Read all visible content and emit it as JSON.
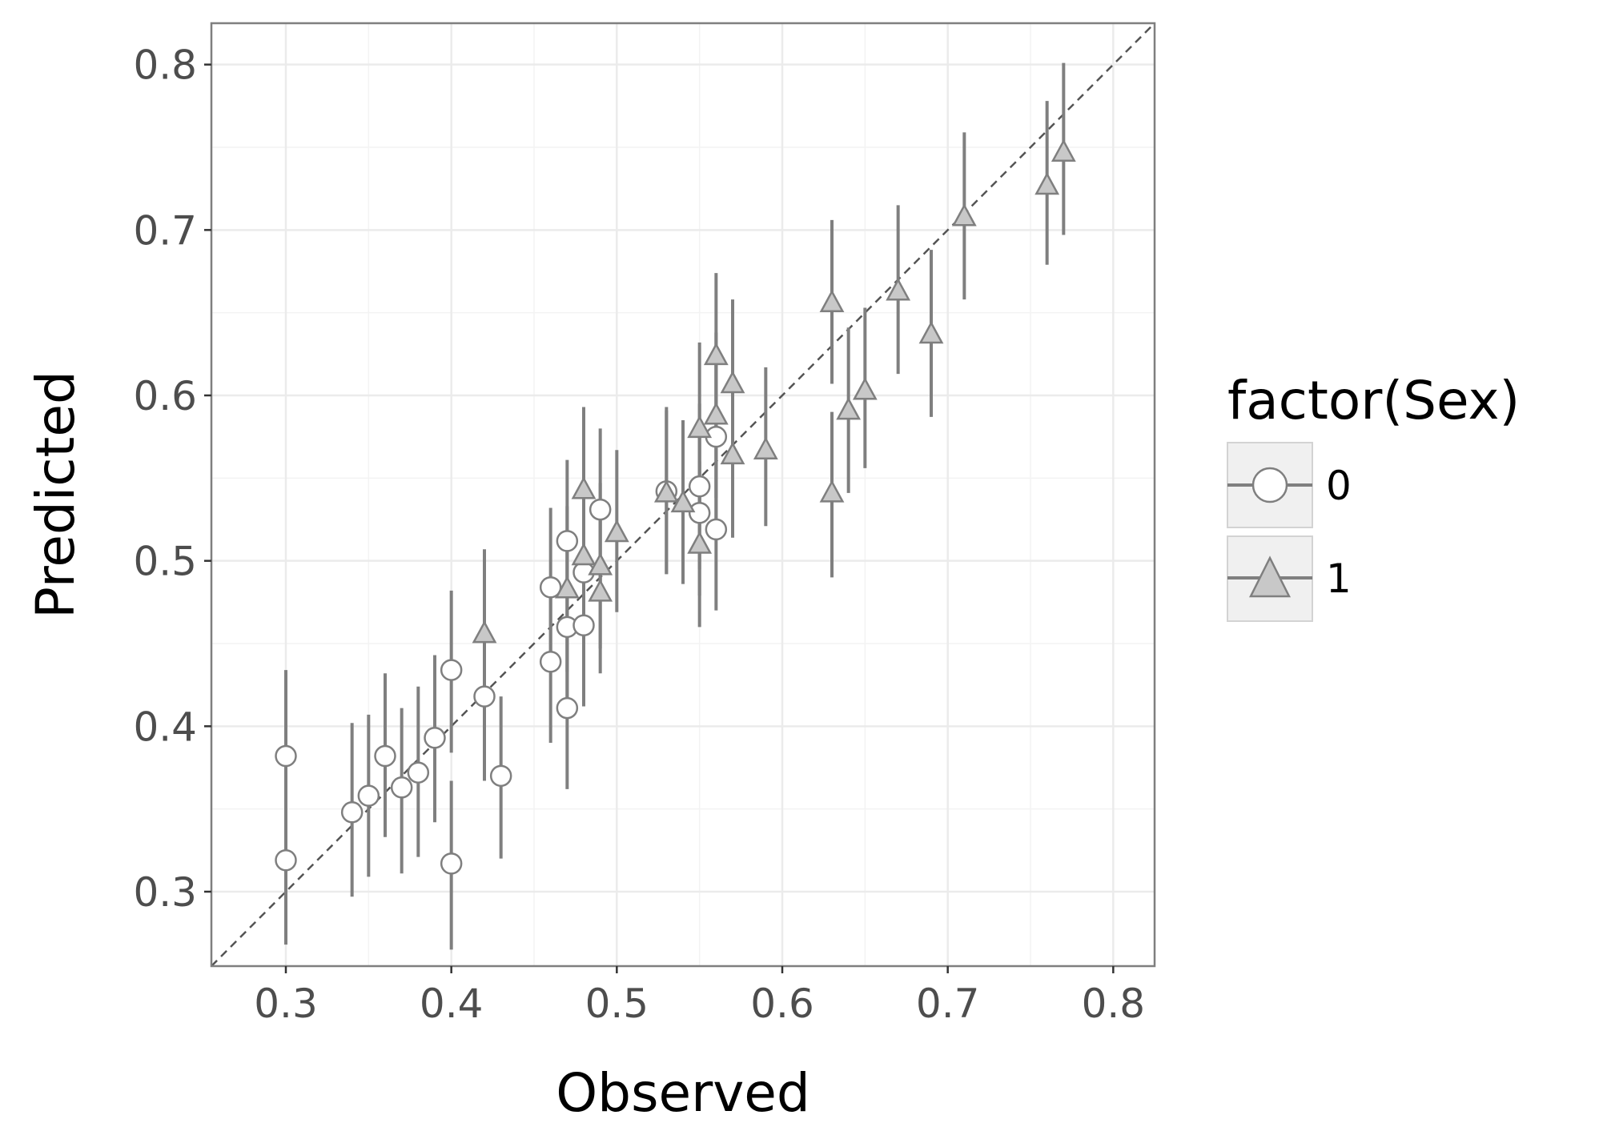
{
  "chart_data": {
    "type": "scatter",
    "title": "",
    "xlabel": "Observed",
    "ylabel": "Predicted",
    "xlim": [
      0.255,
      0.825
    ],
    "ylim": [
      0.255,
      0.825
    ],
    "x_ticks": [
      0.3,
      0.4,
      0.5,
      0.6,
      0.7,
      0.8
    ],
    "y_ticks": [
      0.3,
      0.4,
      0.5,
      0.6,
      0.7,
      0.8
    ],
    "x_tick_labels": [
      "0.3",
      "0.4",
      "0.5",
      "0.6",
      "0.7",
      "0.8"
    ],
    "y_tick_labels": [
      "0.3",
      "0.4",
      "0.5",
      "0.6",
      "0.7",
      "0.8"
    ],
    "grid": true,
    "reference_line": "y = x (dashed)",
    "error_bars": "vertical",
    "legend": {
      "title": "factor(Sex)",
      "placement": "right",
      "entries": [
        {
          "label": "0",
          "shape": "circle"
        },
        {
          "label": "1",
          "shape": "triangle"
        }
      ]
    },
    "colors": {
      "point_stroke": "#7f7f7f",
      "circle_fill": "#ffffff",
      "triangle_fill": "#c8c8c8",
      "errorbar": "#7f7f7f",
      "panel_border": "#7f7f7f",
      "grid_major": "#ebebeb",
      "grid_minor": "#f3f3f3",
      "reference_line": "#555555"
    },
    "series": [
      {
        "name": "0",
        "shape": "circle",
        "points": [
          {
            "x": 0.3,
            "y": 0.382,
            "lo": 0.333,
            "hi": 0.434
          },
          {
            "x": 0.3,
            "y": 0.319,
            "lo": 0.268,
            "hi": 0.37
          },
          {
            "x": 0.34,
            "y": 0.348,
            "lo": 0.297,
            "hi": 0.402
          },
          {
            "x": 0.35,
            "y": 0.358,
            "lo": 0.309,
            "hi": 0.407
          },
          {
            "x": 0.36,
            "y": 0.382,
            "lo": 0.333,
            "hi": 0.432
          },
          {
            "x": 0.37,
            "y": 0.363,
            "lo": 0.311,
            "hi": 0.411
          },
          {
            "x": 0.38,
            "y": 0.372,
            "lo": 0.321,
            "hi": 0.424
          },
          {
            "x": 0.39,
            "y": 0.393,
            "lo": 0.342,
            "hi": 0.443
          },
          {
            "x": 0.4,
            "y": 0.434,
            "lo": 0.384,
            "hi": 0.482
          },
          {
            "x": 0.4,
            "y": 0.317,
            "lo": 0.265,
            "hi": 0.367
          },
          {
            "x": 0.42,
            "y": 0.418,
            "lo": 0.367,
            "hi": 0.469
          },
          {
            "x": 0.43,
            "y": 0.37,
            "lo": 0.32,
            "hi": 0.418
          },
          {
            "x": 0.46,
            "y": 0.484,
            "lo": 0.433,
            "hi": 0.532
          },
          {
            "x": 0.46,
            "y": 0.439,
            "lo": 0.39,
            "hi": 0.488
          },
          {
            "x": 0.47,
            "y": 0.512,
            "lo": 0.462,
            "hi": 0.561
          },
          {
            "x": 0.47,
            "y": 0.46,
            "lo": 0.41,
            "hi": 0.51
          },
          {
            "x": 0.47,
            "y": 0.411,
            "lo": 0.362,
            "hi": 0.461
          },
          {
            "x": 0.48,
            "y": 0.493,
            "lo": 0.443,
            "hi": 0.543
          },
          {
            "x": 0.48,
            "y": 0.461,
            "lo": 0.412,
            "hi": 0.511
          },
          {
            "x": 0.49,
            "y": 0.531,
            "lo": 0.481,
            "hi": 0.58
          },
          {
            "x": 0.53,
            "y": 0.542,
            "lo": 0.492,
            "hi": 0.593
          },
          {
            "x": 0.55,
            "y": 0.545,
            "lo": 0.495,
            "hi": 0.595
          },
          {
            "x": 0.55,
            "y": 0.529,
            "lo": 0.479,
            "hi": 0.579
          },
          {
            "x": 0.56,
            "y": 0.575,
            "lo": 0.525,
            "hi": 0.625
          },
          {
            "x": 0.56,
            "y": 0.519,
            "lo": 0.47,
            "hi": 0.57
          }
        ]
      },
      {
        "name": "1",
        "shape": "triangle",
        "points": [
          {
            "x": 0.42,
            "y": 0.456,
            "lo": 0.407,
            "hi": 0.507
          },
          {
            "x": 0.47,
            "y": 0.483,
            "lo": 0.433,
            "hi": 0.533
          },
          {
            "x": 0.48,
            "y": 0.543,
            "lo": 0.493,
            "hi": 0.593
          },
          {
            "x": 0.48,
            "y": 0.503,
            "lo": 0.453,
            "hi": 0.553
          },
          {
            "x": 0.49,
            "y": 0.497,
            "lo": 0.447,
            "hi": 0.547
          },
          {
            "x": 0.49,
            "y": 0.481,
            "lo": 0.432,
            "hi": 0.531
          },
          {
            "x": 0.5,
            "y": 0.517,
            "lo": 0.469,
            "hi": 0.567
          },
          {
            "x": 0.53,
            "y": 0.541,
            "lo": 0.492,
            "hi": 0.591
          },
          {
            "x": 0.54,
            "y": 0.535,
            "lo": 0.486,
            "hi": 0.585
          },
          {
            "x": 0.55,
            "y": 0.58,
            "lo": 0.53,
            "hi": 0.632
          },
          {
            "x": 0.55,
            "y": 0.51,
            "lo": 0.46,
            "hi": 0.56
          },
          {
            "x": 0.56,
            "y": 0.624,
            "lo": 0.575,
            "hi": 0.674
          },
          {
            "x": 0.56,
            "y": 0.588,
            "lo": 0.538,
            "hi": 0.638
          },
          {
            "x": 0.57,
            "y": 0.607,
            "lo": 0.557,
            "hi": 0.658
          },
          {
            "x": 0.57,
            "y": 0.564,
            "lo": 0.514,
            "hi": 0.614
          },
          {
            "x": 0.59,
            "y": 0.567,
            "lo": 0.521,
            "hi": 0.617
          },
          {
            "x": 0.63,
            "y": 0.656,
            "lo": 0.607,
            "hi": 0.706
          },
          {
            "x": 0.63,
            "y": 0.541,
            "lo": 0.49,
            "hi": 0.59
          },
          {
            "x": 0.64,
            "y": 0.591,
            "lo": 0.541,
            "hi": 0.641
          },
          {
            "x": 0.65,
            "y": 0.603,
            "lo": 0.556,
            "hi": 0.653
          },
          {
            "x": 0.67,
            "y": 0.663,
            "lo": 0.613,
            "hi": 0.715
          },
          {
            "x": 0.69,
            "y": 0.637,
            "lo": 0.587,
            "hi": 0.688
          },
          {
            "x": 0.71,
            "y": 0.708,
            "lo": 0.658,
            "hi": 0.759
          },
          {
            "x": 0.76,
            "y": 0.727,
            "lo": 0.679,
            "hi": 0.778
          },
          {
            "x": 0.77,
            "y": 0.747,
            "lo": 0.697,
            "hi": 0.801
          }
        ]
      }
    ]
  }
}
